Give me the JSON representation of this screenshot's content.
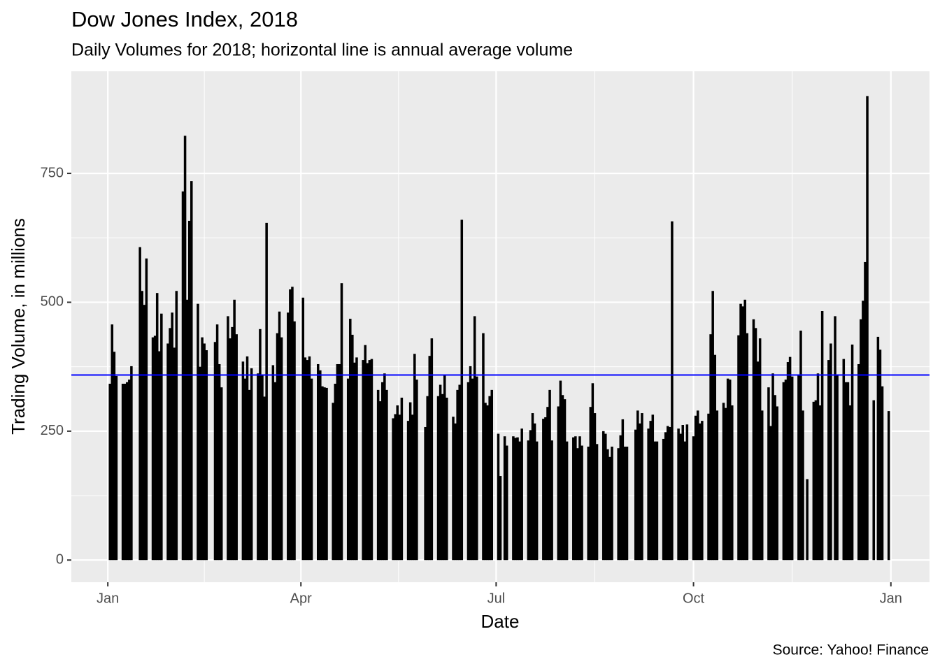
{
  "chart_data": {
    "type": "bar",
    "title": "Dow Jones Index, 2018",
    "subtitle": "Daily Volumes for 2018; horizontal line is annual average volume",
    "x_label": "Date",
    "y_label": "Trading Volume, in millions",
    "caption": "Source: Yahoo! Finance",
    "color": "#000000",
    "grid": true,
    "xlim": [
      -17,
      383
    ],
    "ylim": [
      -43,
      948
    ],
    "xticks": [
      {
        "value": 0,
        "label": "Jan"
      },
      {
        "value": 90,
        "label": "Apr"
      },
      {
        "value": 181,
        "label": "Jul"
      },
      {
        "value": 273,
        "label": "Oct"
      },
      {
        "value": 365,
        "label": "Jan"
      }
    ],
    "yticks": [
      0,
      250,
      500,
      750
    ],
    "hline": {
      "value": 359,
      "color": "#0000ff"
    },
    "x": [
      1,
      2,
      3,
      4,
      7,
      8,
      9,
      10,
      11,
      15,
      16,
      17,
      18,
      21,
      22,
      23,
      24,
      25,
      28,
      29,
      30,
      31,
      32,
      35,
      36,
      37,
      38,
      39,
      42,
      43,
      44,
      45,
      46,
      50,
      51,
      52,
      53,
      56,
      57,
      58,
      59,
      60,
      63,
      64,
      65,
      66,
      67,
      70,
      71,
      72,
      73,
      74,
      77,
      78,
      79,
      80,
      81,
      84,
      85,
      86,
      87,
      91,
      92,
      93,
      94,
      95,
      98,
      99,
      100,
      101,
      102,
      105,
      106,
      107,
      108,
      109,
      112,
      113,
      114,
      115,
      116,
      119,
      120,
      121,
      122,
      123,
      126,
      127,
      128,
      129,
      130,
      133,
      134,
      135,
      136,
      137,
      140,
      141,
      142,
      143,
      144,
      148,
      149,
      150,
      151,
      154,
      155,
      156,
      157,
      158,
      161,
      162,
      163,
      164,
      165,
      168,
      169,
      170,
      171,
      172,
      175,
      176,
      177,
      178,
      179,
      182,
      183,
      185,
      186,
      189,
      190,
      191,
      192,
      193,
      196,
      197,
      198,
      199,
      200,
      203,
      204,
      205,
      206,
      207,
      210,
      211,
      212,
      213,
      214,
      217,
      218,
      219,
      220,
      221,
      224,
      225,
      226,
      227,
      228,
      231,
      232,
      233,
      234,
      235,
      238,
      239,
      240,
      241,
      242,
      246,
      247,
      248,
      249,
      252,
      253,
      254,
      255,
      256,
      259,
      260,
      261,
      262,
      263,
      266,
      267,
      268,
      269,
      270,
      273,
      274,
      275,
      276,
      277,
      280,
      281,
      282,
      283,
      284,
      287,
      288,
      289,
      290,
      291,
      294,
      295,
      296,
      297,
      298,
      301,
      302,
      303,
      304,
      305,
      308,
      309,
      310,
      311,
      312,
      315,
      316,
      317,
      318,
      319,
      322,
      323,
      324,
      326,
      329,
      330,
      331,
      332,
      333,
      336,
      337,
      339,
      340,
      343,
      344,
      345,
      346,
      347,
      350,
      351,
      352,
      353,
      354,
      357,
      359,
      360,
      361,
      364
    ],
    "values": [
      342,
      457,
      404,
      357,
      342,
      342,
      345,
      350,
      376,
      607,
      522,
      495,
      585,
      432,
      435,
      518,
      405,
      478,
      420,
      450,
      480,
      412,
      522,
      715,
      823,
      505,
      658,
      735,
      497,
      375,
      432,
      420,
      407,
      423,
      457,
      380,
      335,
      473,
      430,
      452,
      505,
      438,
      385,
      352,
      395,
      330,
      372,
      362,
      448,
      358,
      317,
      654,
      378,
      345,
      440,
      482,
      432,
      480,
      525,
      530,
      463,
      509,
      393,
      388,
      395,
      352,
      380,
      368,
      337,
      335,
      334,
      305,
      342,
      380,
      380,
      537,
      352,
      468,
      437,
      383,
      393,
      388,
      417,
      382,
      388,
      390,
      330,
      308,
      345,
      362,
      330,
      275,
      283,
      300,
      282,
      315,
      270,
      306,
      282,
      400,
      350,
      258,
      318,
      396,
      430,
      318,
      340,
      322,
      358,
      315,
      278,
      265,
      330,
      340,
      660,
      345,
      376,
      352,
      473,
      356,
      440,
      305,
      300,
      318,
      330,
      245,
      163,
      240,
      222,
      240,
      237,
      238,
      230,
      255,
      232,
      252,
      285,
      265,
      230,
      274,
      277,
      297,
      330,
      232,
      298,
      348,
      320,
      312,
      230,
      238,
      240,
      217,
      240,
      222,
      220,
      297,
      343,
      285,
      225,
      250,
      245,
      215,
      200,
      220,
      217,
      242,
      273,
      220,
      220,
      253,
      290,
      265,
      285,
      255,
      270,
      282,
      230,
      230,
      235,
      248,
      260,
      258,
      657,
      255,
      245,
      262,
      230,
      263,
      240,
      280,
      290,
      265,
      270,
      284,
      438,
      522,
      398,
      290,
      305,
      295,
      352,
      350,
      300,
      436,
      497,
      492,
      505,
      440,
      467,
      450,
      385,
      430,
      290,
      335,
      260,
      362,
      320,
      298,
      345,
      350,
      384,
      394,
      356,
      360,
      445,
      290,
      157,
      307,
      310,
      362,
      300,
      483,
      388,
      420,
      473,
      360,
      390,
      345,
      345,
      300,
      418,
      380,
      467,
      503,
      578,
      900,
      310,
      433,
      408,
      337,
      289
    ]
  }
}
